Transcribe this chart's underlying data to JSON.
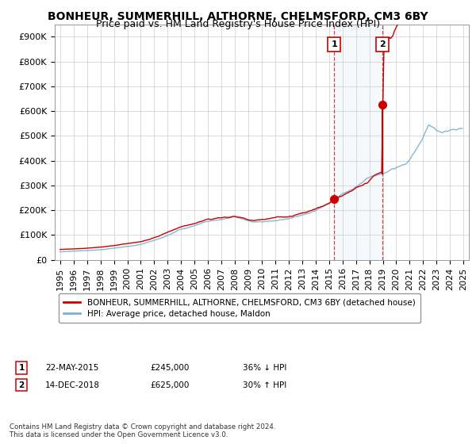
{
  "title": "BONHEUR, SUMMERHILL, ALTHORNE, CHELMSFORD, CM3 6BY",
  "subtitle": "Price paid vs. HM Land Registry's House Price Index (HPI)",
  "ylabel_ticks": [
    "£0",
    "£100K",
    "£200K",
    "£300K",
    "£400K",
    "£500K",
    "£600K",
    "£700K",
    "£800K",
    "£900K"
  ],
  "ytick_values": [
    0,
    100000,
    200000,
    300000,
    400000,
    500000,
    600000,
    700000,
    800000,
    900000
  ],
  "ylim": [
    0,
    950000
  ],
  "xlim_start": 1994.6,
  "xlim_end": 2025.4,
  "sale1_x": 2015.38,
  "sale1_y": 245000,
  "sale1_label": "1",
  "sale2_x": 2018.96,
  "sale2_y": 625000,
  "sale2_label": "2",
  "sale_color": "#cc0000",
  "hpi_color": "#7aafd4",
  "shaded_region_x1": 2015.38,
  "shaded_region_x2": 2018.96,
  "legend_label_red": "BONHEUR, SUMMERHILL, ALTHORNE, CHELMSFORD, CM3 6BY (detached house)",
  "legend_label_blue": "HPI: Average price, detached house, Maldon",
  "annotation1_date": "22-MAY-2015",
  "annotation1_price": "£245,000",
  "annotation1_hpi": "36% ↓ HPI",
  "annotation2_date": "14-DEC-2018",
  "annotation2_price": "£625,000",
  "annotation2_hpi": "30% ↑ HPI",
  "footer": "Contains HM Land Registry data © Crown copyright and database right 2024.\nThis data is licensed under the Open Government Licence v3.0.",
  "background_color": "#ffffff",
  "grid_color": "#cccccc",
  "title_fontsize": 10,
  "subtitle_fontsize": 9,
  "tick_fontsize": 8
}
